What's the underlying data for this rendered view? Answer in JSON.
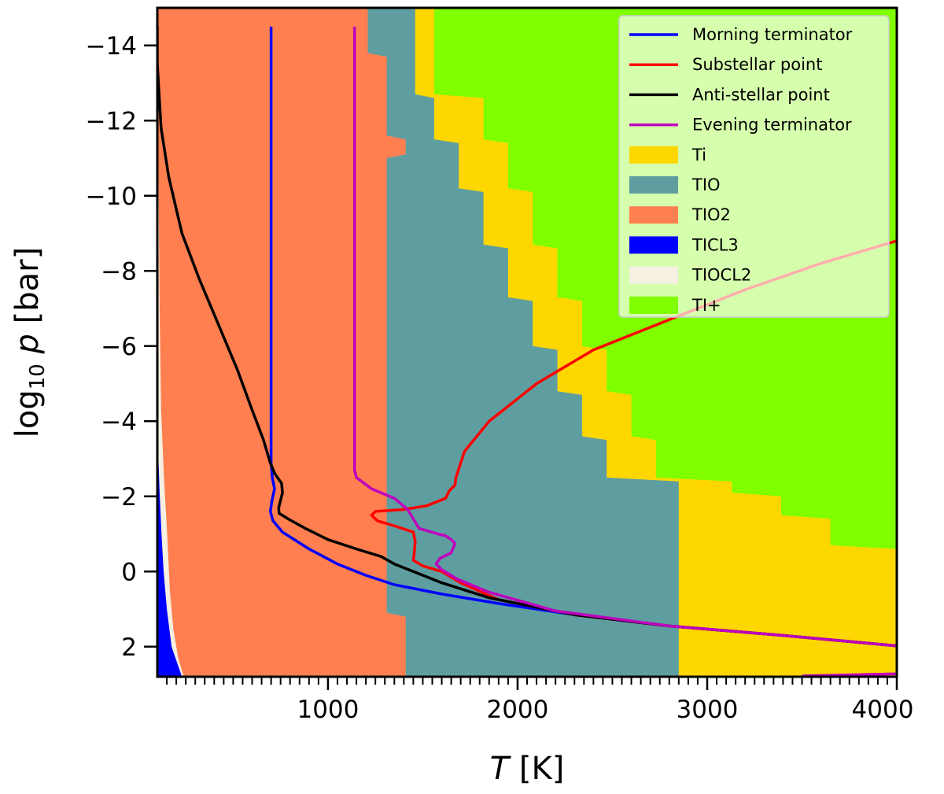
{
  "chart_data": {
    "type": "line",
    "title": "",
    "xlabel": {
      "italic": "T",
      "rest": " [K]"
    },
    "ylabel": {
      "pre": "log",
      "sub": "10",
      "italic": "p",
      "rest": " [bar]"
    },
    "xlim": [
      100,
      4000
    ],
    "ylim": [
      -15,
      2.8
    ],
    "y_inverted": true,
    "x_ticks": [
      1000,
      2000,
      3000,
      4000
    ],
    "x_tick_labels": [
      "1000",
      "2000",
      "3000",
      "4000"
    ],
    "y_ticks": [
      -14,
      -12,
      -10,
      -8,
      -6,
      -4,
      -2,
      0,
      2
    ],
    "y_tick_labels": [
      "−14",
      "−12",
      "−10",
      "−8",
      "−6",
      "−4",
      "−2",
      "0",
      "2"
    ],
    "minor_x_step": 50,
    "grid": false,
    "legend_position": "top-right",
    "background_color": "#7fff00",
    "regions": [
      {
        "name": "Ti",
        "color": "#ffd700",
        "steps": [
          [
            -15,
            1560
          ],
          [
            -14.5,
            1560
          ],
          [
            -12.7,
            1560
          ],
          [
            -12.6,
            1820
          ],
          [
            -11.5,
            1820
          ],
          [
            -11.4,
            1950
          ],
          [
            -10.2,
            1950
          ],
          [
            -10.1,
            2080
          ],
          [
            -8.7,
            2080
          ],
          [
            -8.6,
            2210
          ],
          [
            -7.3,
            2210
          ],
          [
            -7.2,
            2340
          ],
          [
            -6.0,
            2340
          ],
          [
            -5.9,
            2470
          ],
          [
            -4.8,
            2470
          ],
          [
            -4.7,
            2600
          ],
          [
            -3.6,
            2600
          ],
          [
            -3.5,
            2730
          ],
          [
            -2.5,
            2730
          ],
          [
            -2.4,
            3130
          ],
          [
            -2.1,
            3130
          ],
          [
            -2.0,
            3390
          ],
          [
            -1.5,
            3390
          ],
          [
            -1.4,
            3650
          ],
          [
            -0.7,
            3650
          ],
          [
            -0.6,
            4000
          ],
          [
            2.8,
            4000
          ]
        ]
      },
      {
        "name": "TIO",
        "color": "#5f9ea0",
        "steps": [
          [
            -15,
            1460
          ],
          [
            -12.7,
            1460
          ],
          [
            -12.6,
            1560
          ],
          [
            -11.5,
            1560
          ],
          [
            -11.4,
            1690
          ],
          [
            -10.2,
            1690
          ],
          [
            -10.1,
            1820
          ],
          [
            -8.7,
            1820
          ],
          [
            -8.6,
            1950
          ],
          [
            -7.3,
            1950
          ],
          [
            -7.2,
            2080
          ],
          [
            -6.0,
            2080
          ],
          [
            -5.9,
            2210
          ],
          [
            -4.8,
            2210
          ],
          [
            -4.7,
            2340
          ],
          [
            -3.6,
            2340
          ],
          [
            -3.5,
            2470
          ],
          [
            -2.5,
            2470
          ],
          [
            -2.4,
            2850
          ],
          [
            2.8,
            2850
          ]
        ]
      },
      {
        "name": "TIO2",
        "color": "#ff7f50",
        "steps": [
          [
            -15,
            1210
          ],
          [
            -13.8,
            1210
          ],
          [
            -13.7,
            1310
          ],
          [
            -11.6,
            1310
          ],
          [
            -11.5,
            1410
          ],
          [
            -11.1,
            1410
          ],
          [
            -11.0,
            1310
          ],
          [
            1.1,
            1310
          ],
          [
            1.2,
            1410
          ],
          [
            2.8,
            1410
          ]
        ]
      },
      {
        "name": "TIOCL2",
        "color": "#f5f0e1",
        "steps": [
          [
            -14.5,
            100
          ],
          [
            -11.0,
            106
          ],
          [
            -7.0,
            112
          ],
          [
            -4.3,
            120
          ],
          [
            -2.5,
            135
          ],
          [
            -1.0,
            152
          ],
          [
            0.5,
            166
          ],
          [
            1.5,
            184
          ],
          [
            2.3,
            210
          ],
          [
            2.8,
            240
          ]
        ]
      },
      {
        "name": "TICL3",
        "color": "#0000ff",
        "steps": [
          [
            -4.3,
            100
          ],
          [
            -3.0,
            106
          ],
          [
            -2.0,
            113
          ],
          [
            -1.0,
            122
          ],
          [
            0.0,
            133
          ],
          [
            1.0,
            150
          ],
          [
            2.0,
            175
          ],
          [
            2.8,
            230
          ]
        ]
      }
    ],
    "series": [
      {
        "name": "Morning terminator",
        "color": "#0000ff",
        "points": [
          [
            700,
            -14.5
          ],
          [
            700,
            -8
          ],
          [
            700,
            -4
          ],
          [
            700,
            -2.9
          ],
          [
            706,
            -2.5
          ],
          [
            718,
            -2.2
          ],
          [
            705,
            -1.9
          ],
          [
            696,
            -1.6
          ],
          [
            710,
            -1.35
          ],
          [
            760,
            -1.05
          ],
          [
            900,
            -0.6
          ],
          [
            1050,
            -0.2
          ],
          [
            1200,
            0.1
          ],
          [
            1350,
            0.35
          ],
          [
            1600,
            0.6
          ],
          [
            1900,
            0.85
          ],
          [
            2300,
            1.15
          ],
          [
            2800,
            1.45
          ],
          [
            3400,
            1.7
          ],
          [
            4000,
            1.98
          ]
        ]
      },
      {
        "name": "Substellar point",
        "color": "#ff0000",
        "points": [
          [
            4000,
            -8.8
          ],
          [
            3600,
            -8.2
          ],
          [
            3200,
            -7.5
          ],
          [
            2800,
            -6.7
          ],
          [
            2400,
            -5.9
          ],
          [
            2100,
            -5.0
          ],
          [
            1850,
            -4.0
          ],
          [
            1720,
            -3.2
          ],
          [
            1675,
            -2.5
          ],
          [
            1670,
            -2.3
          ],
          [
            1640,
            -2.15
          ],
          [
            1620,
            -1.95
          ],
          [
            1520,
            -1.75
          ],
          [
            1400,
            -1.65
          ],
          [
            1250,
            -1.6
          ],
          [
            1230,
            -1.5
          ],
          [
            1240,
            -1.45
          ],
          [
            1260,
            -1.35
          ],
          [
            1360,
            -1.2
          ],
          [
            1450,
            -1.05
          ],
          [
            1460,
            -0.8
          ],
          [
            1455,
            -0.5
          ],
          [
            1450,
            -0.3
          ],
          [
            1500,
            -0.15
          ],
          [
            1600,
            0.0
          ],
          [
            1700,
            0.3
          ],
          [
            1900,
            0.75
          ],
          [
            2300,
            1.15
          ],
          [
            2800,
            1.45
          ],
          [
            3400,
            1.7
          ],
          [
            4000,
            1.98
          ]
        ]
      },
      {
        "name": "Anti-stellar point",
        "color": "#000000",
        "points": [
          [
            100,
            -14.5
          ],
          [
            100,
            -13.5
          ],
          [
            120,
            -11.8
          ],
          [
            160,
            -10.5
          ],
          [
            230,
            -9.0
          ],
          [
            320,
            -7.8
          ],
          [
            420,
            -6.6
          ],
          [
            520,
            -5.4
          ],
          [
            600,
            -4.3
          ],
          [
            660,
            -3.5
          ],
          [
            695,
            -2.9
          ],
          [
            720,
            -2.6
          ],
          [
            755,
            -2.35
          ],
          [
            760,
            -2.1
          ],
          [
            750,
            -1.9
          ],
          [
            740,
            -1.7
          ],
          [
            742,
            -1.55
          ],
          [
            790,
            -1.4
          ],
          [
            880,
            -1.15
          ],
          [
            1000,
            -0.85
          ],
          [
            1150,
            -0.6
          ],
          [
            1280,
            -0.4
          ],
          [
            1350,
            -0.2
          ],
          [
            1450,
            0.0
          ],
          [
            1600,
            0.3
          ],
          [
            1850,
            0.7
          ],
          [
            2300,
            1.15
          ],
          [
            2800,
            1.45
          ],
          [
            3400,
            1.7
          ],
          [
            4000,
            1.98
          ]
        ]
      },
      {
        "name": "Evening terminator",
        "color": "#bf00bf",
        "points": [
          [
            1140,
            -14.5
          ],
          [
            1140,
            -10
          ],
          [
            1140,
            -6
          ],
          [
            1140,
            -2.7
          ],
          [
            1150,
            -2.5
          ],
          [
            1230,
            -2.2
          ],
          [
            1350,
            -1.95
          ],
          [
            1420,
            -1.65
          ],
          [
            1450,
            -1.4
          ],
          [
            1480,
            -1.15
          ],
          [
            1580,
            -1.0
          ],
          [
            1620,
            -0.95
          ],
          [
            1650,
            -0.85
          ],
          [
            1670,
            -0.75
          ],
          [
            1650,
            -0.5
          ],
          [
            1590,
            -0.35
          ],
          [
            1570,
            -0.2
          ],
          [
            1600,
            -0.05
          ],
          [
            1680,
            0.2
          ],
          [
            1850,
            0.55
          ],
          [
            2200,
            1.05
          ],
          [
            2800,
            1.45
          ],
          [
            3400,
            1.7
          ],
          [
            4000,
            1.98
          ]
        ]
      },
      {
        "name": "",
        "color": "#bf00bf",
        "in_legend": false,
        "points": [
          [
            3500,
            2.78
          ],
          [
            4000,
            2.72
          ]
        ]
      }
    ],
    "legend": [
      {
        "label": "Morning terminator",
        "kind": "line",
        "color": "#0000ff"
      },
      {
        "label": "Substellar point",
        "kind": "line",
        "color": "#ff0000"
      },
      {
        "label": "Anti-stellar point",
        "kind": "line",
        "color": "#000000"
      },
      {
        "label": "Evening terminator",
        "kind": "line",
        "color": "#bf00bf"
      },
      {
        "label": "Ti",
        "kind": "patch",
        "color": "#ffd700"
      },
      {
        "label": "TIO",
        "kind": "patch",
        "color": "#5f9ea0"
      },
      {
        "label": "TIO2",
        "kind": "patch",
        "color": "#ff7f50"
      },
      {
        "label": "TICL3",
        "kind": "patch",
        "color": "#0000ff"
      },
      {
        "label": "TIOCL2",
        "kind": "patch",
        "color": "#f5f0e1"
      },
      {
        "label": "TI+",
        "kind": "patch",
        "color": "#7fff00"
      }
    ]
  }
}
